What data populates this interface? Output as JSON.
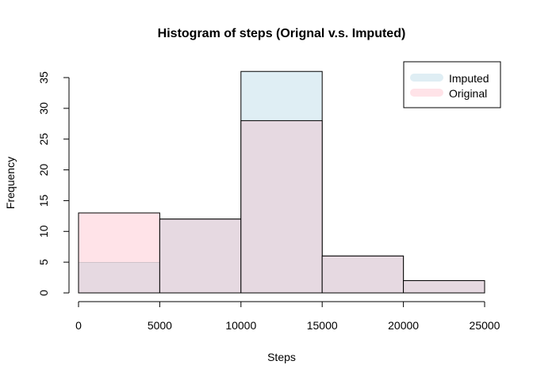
{
  "chart_data": {
    "type": "bar",
    "title": "Histogram of steps (Orignal v.s. Imputed)",
    "xlabel": "Steps",
    "ylabel": "Frequency",
    "bins": [
      {
        "from": 0,
        "to": 5000
      },
      {
        "from": 5000,
        "to": 10000
      },
      {
        "from": 10000,
        "to": 15000
      },
      {
        "from": 15000,
        "to": 20000
      },
      {
        "from": 20000,
        "to": 25000
      }
    ],
    "series": [
      {
        "name": "Imputed",
        "values": [
          5,
          12,
          36,
          6,
          2
        ],
        "color": "#dfeef4"
      },
      {
        "name": "Original",
        "values": [
          13,
          12,
          28,
          6,
          2
        ],
        "color": "#ffe3e8"
      }
    ],
    "overlap_color": "#e6d9e1",
    "xlim": [
      0,
      25000
    ],
    "ylim": [
      0,
      35
    ],
    "xticks": [
      0,
      5000,
      10000,
      15000,
      20000,
      25000
    ],
    "xtick_labels": [
      "0",
      "5000",
      "10000",
      "15000",
      "20000",
      "25000"
    ],
    "yticks": [
      0,
      5,
      10,
      15,
      20,
      25,
      30,
      35
    ],
    "ytick_labels": [
      "0",
      "5",
      "10",
      "15",
      "20",
      "25",
      "30",
      "35"
    ],
    "grid": false,
    "legend_position": "top-right"
  }
}
